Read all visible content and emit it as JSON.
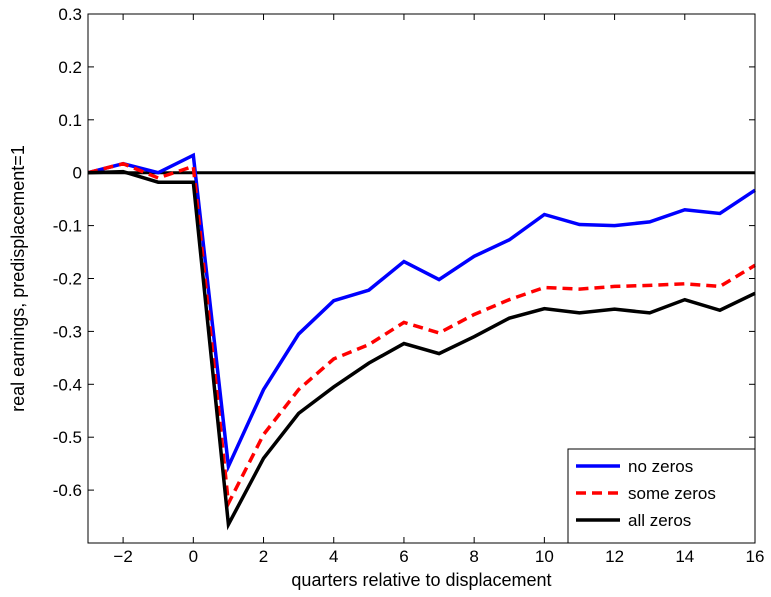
{
  "chart_data": {
    "type": "line",
    "title": "",
    "xlabel": "quarters relative to displacement",
    "ylabel": "real earnings, predisplacement=1",
    "xlim": [
      -3,
      16
    ],
    "ylim": [
      -0.7,
      0.3
    ],
    "xticks": [
      -2,
      0,
      2,
      4,
      6,
      8,
      10,
      12,
      14,
      16
    ],
    "xtick_labels": [
      "−2",
      "0",
      "2",
      "4",
      "6",
      "8",
      "10",
      "12",
      "14",
      "16"
    ],
    "yticks": [
      0.3,
      0.2,
      0.1,
      0,
      -0.1,
      -0.2,
      -0.3,
      -0.4,
      -0.5,
      -0.6
    ],
    "ytick_labels": [
      "0.3",
      "0.2",
      "0.1",
      "0",
      "-0.1",
      "-0.2",
      "-0.3",
      "-0.4",
      "-0.5",
      "-0.6"
    ],
    "grid": false,
    "legend_position": "bottom-right",
    "reference_line": {
      "y": 0,
      "color": "#000000"
    },
    "x": [
      -3,
      -2,
      -1,
      0,
      1,
      2,
      3,
      4,
      5,
      6,
      7,
      8,
      9,
      10,
      11,
      12,
      13,
      14,
      15,
      16
    ],
    "series": [
      {
        "name": "no zeros",
        "color": "#0000ff",
        "style": "solid",
        "values": [
          0.0,
          0.017,
          0.0,
          0.033,
          -0.555,
          -0.41,
          -0.305,
          -0.242,
          -0.222,
          -0.168,
          -0.202,
          -0.158,
          -0.127,
          -0.079,
          -0.098,
          -0.1,
          -0.093,
          -0.07,
          -0.077,
          -0.033
        ]
      },
      {
        "name": "some zeros",
        "color": "#ff0000",
        "style": "dashed",
        "values": [
          0.0,
          0.017,
          -0.01,
          0.012,
          -0.625,
          -0.495,
          -0.41,
          -0.352,
          -0.325,
          -0.283,
          -0.303,
          -0.268,
          -0.24,
          -0.217,
          -0.22,
          -0.215,
          -0.213,
          -0.21,
          -0.215,
          -0.175
        ]
      },
      {
        "name": "all zeros",
        "color": "#000000",
        "style": "solid",
        "values": [
          0.0,
          0.002,
          -0.018,
          -0.018,
          -0.665,
          -0.54,
          -0.455,
          -0.405,
          -0.36,
          -0.323,
          -0.342,
          -0.31,
          -0.275,
          -0.257,
          -0.265,
          -0.258,
          -0.265,
          -0.24,
          -0.26,
          -0.228
        ]
      }
    ]
  }
}
